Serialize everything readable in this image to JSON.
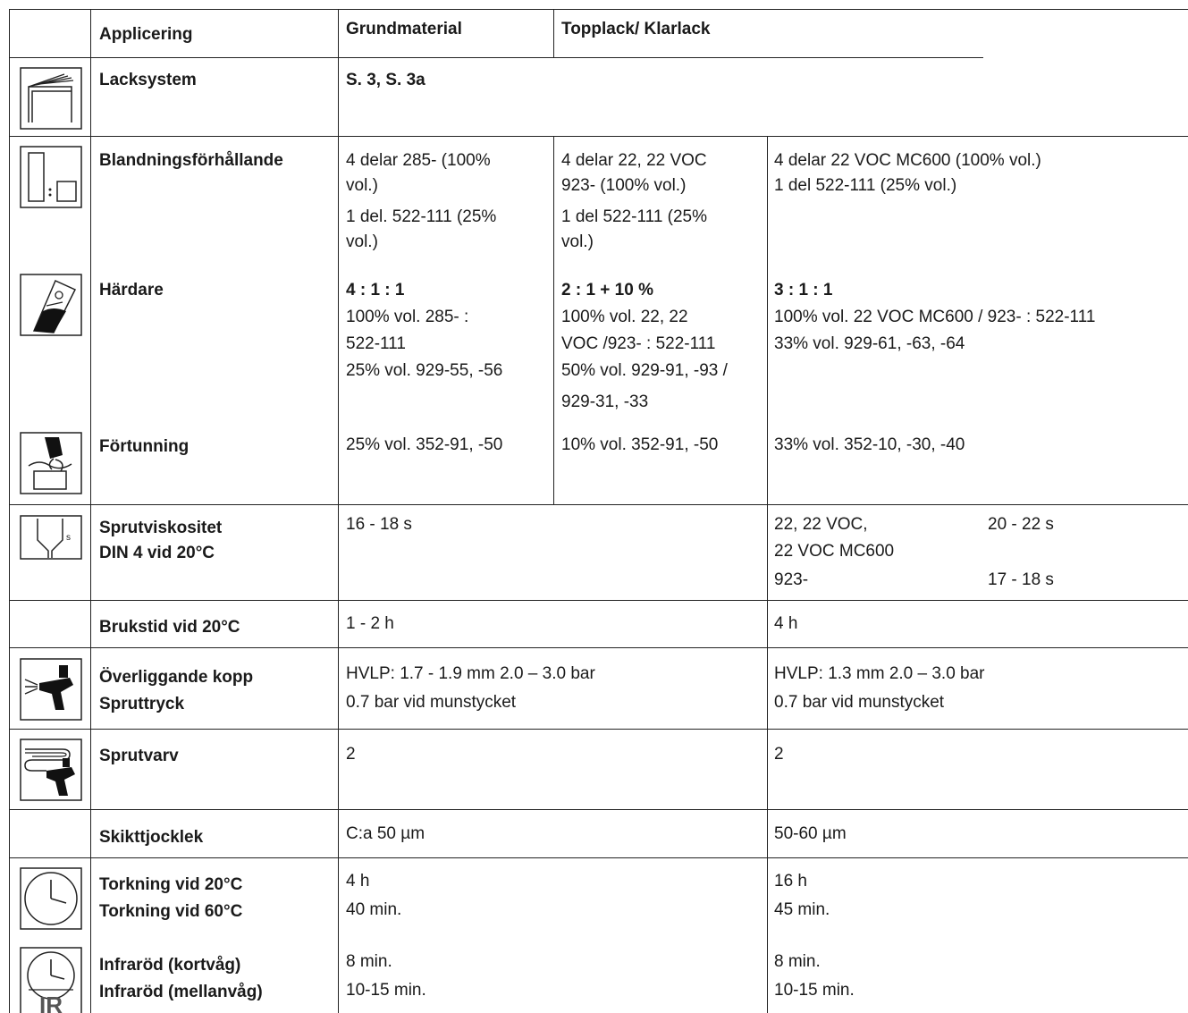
{
  "header": {
    "applicering": "Applicering",
    "grundmaterial": "Grundmaterial",
    "topplack": "Topplack/ Klarlack"
  },
  "rows": {
    "lacksystem": {
      "label": "Lacksystem",
      "value": "S. 3, S. 3a",
      "icon": "book-layers-icon"
    },
    "blandning": {
      "label": "Blandningsförhållande",
      "icon": "mixing-ratio-icon",
      "col1": [
        "4 delar 285- (100%",
        "vol.)",
        "1 del. 522-111 (25%",
        "vol.)"
      ],
      "col2": [
        "4 delar 22, 22 VOC",
        "923- (100% vol.)",
        "1 del 522-111 (25%",
        "vol.)"
      ],
      "col3": [
        "4 delar 22 VOC MC600 (100% vol.)",
        "1 del 522-111 (25% vol.)"
      ]
    },
    "hardare": {
      "label": "Härdare",
      "icon": "hardener-can-icon",
      "col1_title": "4 : 1 : 1",
      "col1": [
        "100% vol. 285- :",
        "522-111",
        "25% vol. 929-55, -56"
      ],
      "col2_title": "2 : 1 + 10 %",
      "col2": [
        "100% vol. 22, 22",
        "VOC /923- : 522-111",
        "50% vol. 929-91, -93 /",
        "929-31, -33"
      ],
      "col3_title": "3 : 1 : 1",
      "col3": [
        "100% vol. 22 VOC MC600 / 923- : 522-111",
        "33% vol. 929-61, -63, -64"
      ]
    },
    "fortunning": {
      "label": "Förtunning",
      "icon": "thinner-pour-icon",
      "col1": "25% vol. 352-91, -50",
      "col2": "10% vol. 352-91, -50",
      "col3": "33% vol. 352-10, -30, -40"
    },
    "sprutviskositet": {
      "label1": "Sprutviskositet",
      "label2": "DIN 4 vid 20°C",
      "icon": "viscosity-cup-icon",
      "grund": "16 - 18 s",
      "top_a": "22, 22 VOC,",
      "top_b": "22 VOC MC600",
      "top_c": "923-",
      "top_a_val": "20 - 22 s",
      "top_c_val": "17 - 18 s"
    },
    "brukstid": {
      "label": "Brukstid vid 20°C",
      "grund": "1 - 2 h",
      "top": "4 h"
    },
    "kopp": {
      "label1": "Överliggande kopp",
      "label2": "Spruttryck",
      "icon": "spray-gun-icon",
      "grund1": "HVLP: 1.7 - 1.9 mm 2.0 – 3.0 bar",
      "grund2": "0.7 bar vid munstycket",
      "top1": "HVLP: 1.3 mm 2.0 – 3.0 bar",
      "top2": "0.7 bar vid munstycket"
    },
    "sprutvarv": {
      "label": "Sprutvarv",
      "icon": "spray-passes-icon",
      "grund": "2",
      "top": "2"
    },
    "skikt": {
      "label": "Skikttjocklek",
      "grund": "C:a 50 µm",
      "top": "50-60 µm"
    },
    "torkning": {
      "label1": "Torkning vid 20°C",
      "label2": "Torkning vid 60°C",
      "icon": "clock-icon",
      "grund1": "4 h",
      "grund2": "40 min.",
      "top1": "16 h",
      "top2": "45 min."
    },
    "ir": {
      "label1": "Infraröd (kortvåg)",
      "label2": "Infraröd (mellanvåg)",
      "icon": "infrared-clock-icon",
      "ir_text": "IR",
      "grund1": "8 min.",
      "grund2": "10-15 min.",
      "top1": "8 min.",
      "top2": "10-15 min."
    }
  }
}
